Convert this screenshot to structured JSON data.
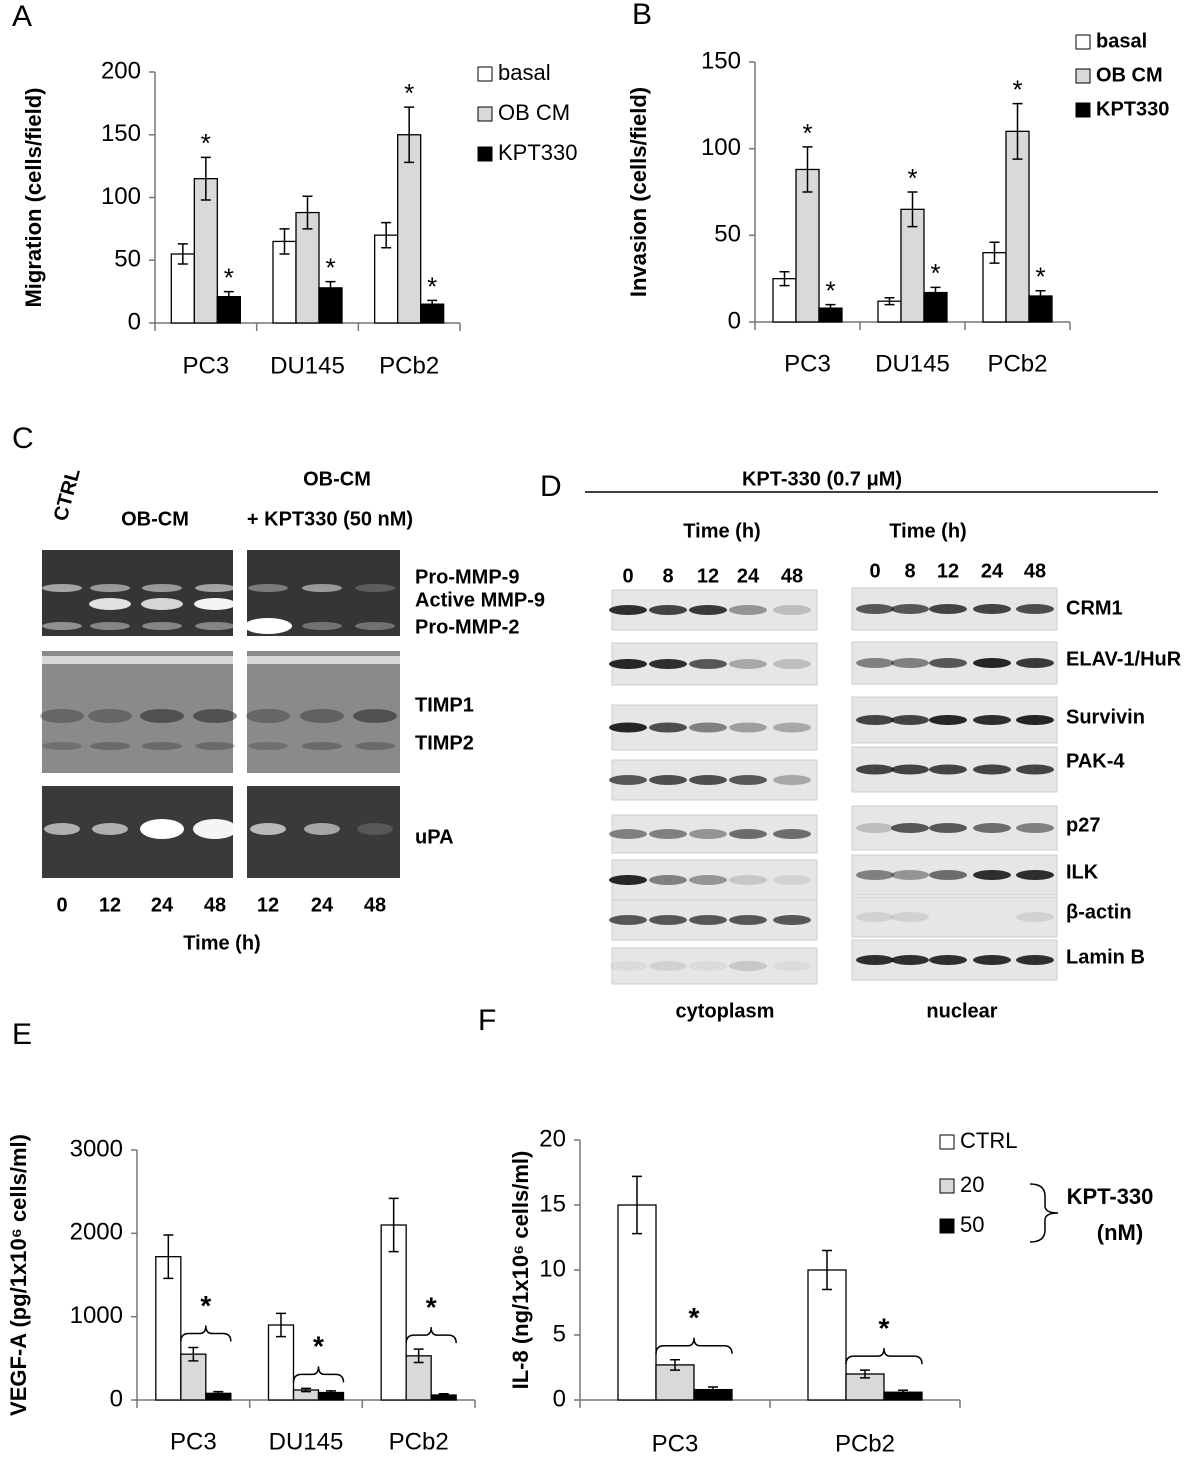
{
  "chart_data": [
    {
      "type": "bar",
      "panel_label": "A",
      "y_label": "Migration (cells/field)",
      "categories": [
        "PC3",
        "DU145",
        "PCb2"
      ],
      "series": [
        {
          "name": "basal",
          "color": "#ffffff",
          "values": [
            55,
            65,
            70
          ],
          "errors": [
            8,
            10,
            10
          ]
        },
        {
          "name": "OB CM",
          "color": "#d9d9d9",
          "values": [
            115,
            88,
            150
          ],
          "errors": [
            17,
            13,
            22
          ],
          "labels": [
            "*",
            null,
            "*"
          ]
        },
        {
          "name": "KPT330",
          "color": "#000000",
          "values": [
            21,
            28,
            15
          ],
          "errors": [
            4,
            5,
            3
          ],
          "labels": [
            "*",
            "*",
            "*"
          ]
        }
      ],
      "ylim": [
        0,
        200
      ],
      "yticks": [
        0,
        50,
        100,
        150,
        200
      ],
      "legend": "right"
    },
    {
      "type": "bar",
      "panel_label": "B",
      "y_label": "Invasion (cells/field)",
      "categories": [
        "PC3",
        "DU145",
        "PCb2"
      ],
      "series": [
        {
          "name": "basal",
          "color": "#ffffff",
          "values": [
            25,
            12,
            40
          ],
          "errors": [
            4,
            2,
            6
          ]
        },
        {
          "name": "OB CM",
          "color": "#d9d9d9",
          "values": [
            88,
            65,
            110
          ],
          "errors": [
            13,
            10,
            16
          ],
          "labels": [
            "*",
            "*",
            "*"
          ]
        },
        {
          "name": "KPT330",
          "color": "#000000",
          "values": [
            8,
            17,
            15
          ],
          "errors": [
            2,
            3,
            3
          ],
          "labels": [
            "*",
            "*",
            "*"
          ]
        }
      ],
      "ylim": [
        0,
        150
      ],
      "yticks": [
        0,
        50,
        100,
        150
      ],
      "legend": "right"
    },
    {
      "type": "bar",
      "panel_label": "E",
      "y_label": "VEGF-A (pg/1x10⁶ cells/ml)",
      "categories": [
        "PC3",
        "DU145",
        "PCb2"
      ],
      "series": [
        {
          "color": "#ffffff",
          "values": [
            1720,
            900,
            2100
          ],
          "errors": [
            260,
            140,
            320
          ]
        },
        {
          "color": "#d9d9d9",
          "values": [
            550,
            120,
            530
          ],
          "errors": [
            80,
            20,
            80
          ]
        },
        {
          "color": "#000000",
          "values": [
            80,
            90,
            60
          ],
          "errors": [
            20,
            20,
            15
          ]
        }
      ],
      "annotations": [
        "*",
        "*",
        "*"
      ],
      "ylim": [
        0,
        3000
      ],
      "yticks": [
        0,
        1000,
        2000,
        3000
      ]
    },
    {
      "type": "bar",
      "panel_label": "F",
      "y_label": "IL-8 (ng/1x10⁶ cells/ml)",
      "categories": [
        "PC3",
        "PCb2"
      ],
      "series": [
        {
          "name": "CTRL",
          "color": "#ffffff",
          "values": [
            15,
            10
          ],
          "errors": [
            2.2,
            1.5
          ]
        },
        {
          "name": "20",
          "color": "#d9d9d9",
          "values": [
            2.7,
            2.0
          ],
          "errors": [
            0.4,
            0.3
          ]
        },
        {
          "name": "50",
          "color": "#000000",
          "values": [
            0.8,
            0.6
          ],
          "errors": [
            0.2,
            0.15
          ]
        }
      ],
      "annotations": [
        "*",
        "*"
      ],
      "legend_note": [
        "KPT-330",
        "(nM)"
      ],
      "ylim": [
        0,
        20
      ],
      "yticks": [
        0,
        5,
        10,
        15,
        20
      ],
      "legend": "right"
    }
  ],
  "gel_panel": {
    "label": "C",
    "ctrl": "CTRL",
    "ob_cm": "OB-CM",
    "treated": "OB-CM",
    "treated_dose": "+ KPT330 (50 nM)",
    "bands": [
      "Pro-MMP-9",
      "Active MMP-9",
      "Pro-MMP-2",
      "TIMP1",
      "TIMP2",
      "uPA"
    ],
    "lanes": [
      "0",
      "12",
      "24",
      "48",
      "12",
      "24",
      "48"
    ],
    "x_label": "Time (h)"
  },
  "blot_panel": {
    "label": "D",
    "title": "KPT-330 (0.7 μM)",
    "time_label_left": "Time (h)",
    "time_label_right": "Time (h)",
    "lanes_left": [
      "0",
      "8",
      "12",
      "24",
      "48"
    ],
    "lanes_right": [
      "0",
      "8",
      "12",
      "24",
      "48"
    ],
    "proteins": [
      "CRM1",
      "ELAV-1/HuR",
      "Survivin",
      "PAK-4",
      "p27",
      "ILK",
      "β-actin",
      "Lamin B"
    ],
    "fractions": [
      "cytoplasm",
      "nuclear"
    ]
  }
}
